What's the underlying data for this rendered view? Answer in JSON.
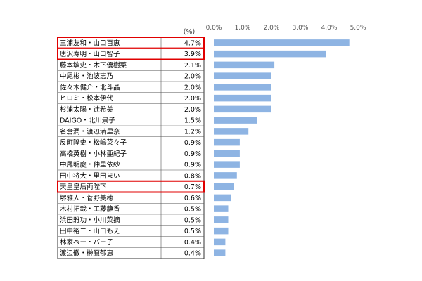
{
  "chart_data": {
    "type": "bar",
    "unit_label": "(%)",
    "categories": [
      "三浦友和・山口百恵",
      "唐沢寿明・山口智子",
      "藤本敏史・木下優樹菜",
      "中尾彬・池波志乃",
      "佐々木健介・北斗晶",
      "ヒロミ・松本伊代",
      "杉浦太陽・辻希美",
      "DAIGO・北川景子",
      "名倉潤・渡辺満里奈",
      "反町隆史・松嶋菜々子",
      "高橋英樹・小林亜紀子",
      "中尾明慶・仲里依紗",
      "田中将大・里田まい",
      "天皇皇后両陛下",
      "堺雅人・菅野美穂",
      "木村拓哉・工藤静香",
      "浜田雅功・小川菜摘",
      "田中裕二・山口もえ",
      "林家ペー・パー子",
      "渡辺徹・榊原郁恵"
    ],
    "value_labels": [
      "4.7%",
      "3.9%",
      "2.1%",
      "2.0%",
      "2.0%",
      "2.0%",
      "2.0%",
      "1.5%",
      "1.2%",
      "0.9%",
      "0.9%",
      "0.9%",
      "0.8%",
      "0.7%",
      "0.6%",
      "0.5%",
      "0.5%",
      "0.5%",
      "0.4%",
      "0.4%"
    ],
    "values": [
      4.7,
      3.9,
      2.1,
      2.0,
      2.0,
      2.0,
      2.0,
      1.5,
      1.2,
      0.9,
      0.9,
      0.9,
      0.8,
      0.7,
      0.6,
      0.5,
      0.5,
      0.5,
      0.4,
      0.4
    ],
    "highlighted": [
      0,
      1,
      13
    ],
    "x_ticks": [
      "0.0%",
      "1.0%",
      "2.0%",
      "3.0%",
      "4.0%",
      "5.0%"
    ],
    "xlim": [
      0,
      5
    ],
    "grid": false,
    "colors": {
      "bar": "#8EB4E3",
      "highlight": "#E00000",
      "border": "#333333"
    }
  }
}
